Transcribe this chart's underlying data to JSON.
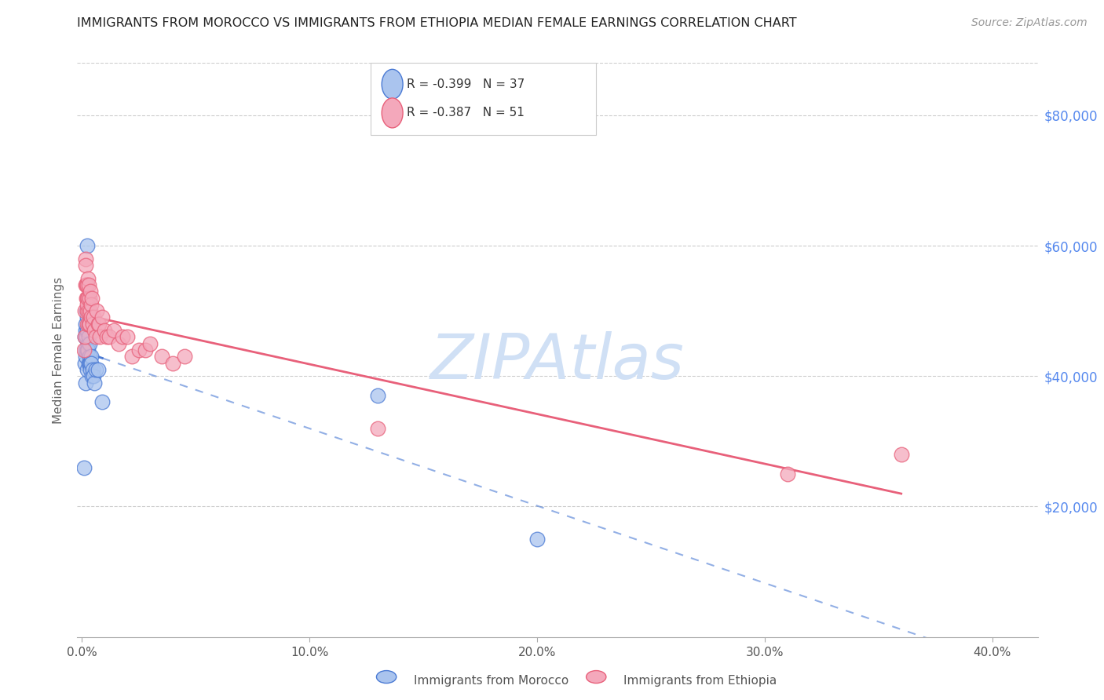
{
  "title": "IMMIGRANTS FROM MOROCCO VS IMMIGRANTS FROM ETHIOPIA MEDIAN FEMALE EARNINGS CORRELATION CHART",
  "source": "Source: ZipAtlas.com",
  "ylabel": "Median Female Earnings",
  "xlabel_ticks": [
    "0.0%",
    "10.0%",
    "20.0%",
    "30.0%",
    "40.0%"
  ],
  "xlabel_vals": [
    0.0,
    0.1,
    0.2,
    0.3,
    0.4
  ],
  "ytick_labels": [
    "$20,000",
    "$40,000",
    "$60,000",
    "$80,000"
  ],
  "ytick_vals": [
    20000,
    40000,
    60000,
    80000
  ],
  "ylim": [
    0,
    88000
  ],
  "xlim": [
    -0.002,
    0.42
  ],
  "morocco_R": -0.399,
  "morocco_N": 37,
  "ethiopia_R": -0.387,
  "ethiopia_N": 51,
  "morocco_color": "#aac4ee",
  "ethiopia_color": "#f4a8bb",
  "morocco_line_color": "#4a7ad4",
  "ethiopia_line_color": "#e8607a",
  "watermark": "ZIPAtlas",
  "watermark_color": "#d0e0f5",
  "morocco_x": [
    0.001,
    0.0012,
    0.0013,
    0.0015,
    0.0015,
    0.0016,
    0.0018,
    0.0018,
    0.002,
    0.002,
    0.0022,
    0.0022,
    0.0023,
    0.0023,
    0.0025,
    0.0025,
    0.0026,
    0.0028,
    0.003,
    0.003,
    0.0032,
    0.0033,
    0.0034,
    0.0035,
    0.0036,
    0.0038,
    0.004,
    0.0042,
    0.0045,
    0.0048,
    0.005,
    0.0055,
    0.006,
    0.007,
    0.009,
    0.13,
    0.2
  ],
  "morocco_y": [
    26000,
    46000,
    42000,
    47000,
    43000,
    48000,
    44000,
    39000,
    50000,
    46000,
    44000,
    41000,
    60000,
    47000,
    44000,
    49000,
    45000,
    44000,
    42000,
    48000,
    46000,
    43000,
    42000,
    45000,
    42000,
    41000,
    43000,
    42000,
    40000,
    41000,
    40000,
    39000,
    41000,
    41000,
    36000,
    37000,
    15000
  ],
  "ethiopia_x": [
    0.001,
    0.0012,
    0.0013,
    0.0015,
    0.0016,
    0.0018,
    0.002,
    0.002,
    0.0022,
    0.0022,
    0.0023,
    0.0025,
    0.0025,
    0.0027,
    0.0028,
    0.003,
    0.003,
    0.0032,
    0.0034,
    0.0035,
    0.0036,
    0.0038,
    0.004,
    0.0042,
    0.0045,
    0.0048,
    0.005,
    0.0055,
    0.006,
    0.0065,
    0.007,
    0.0075,
    0.008,
    0.009,
    0.01,
    0.011,
    0.012,
    0.014,
    0.016,
    0.018,
    0.02,
    0.022,
    0.025,
    0.028,
    0.03,
    0.035,
    0.04,
    0.045,
    0.13,
    0.31,
    0.36
  ],
  "ethiopia_y": [
    44000,
    50000,
    46000,
    58000,
    54000,
    57000,
    54000,
    52000,
    50000,
    52000,
    48000,
    54000,
    51000,
    55000,
    52000,
    50000,
    48000,
    54000,
    52000,
    48000,
    50000,
    53000,
    51000,
    49000,
    52000,
    48000,
    49000,
    47000,
    46000,
    50000,
    48000,
    48000,
    46000,
    49000,
    47000,
    46000,
    46000,
    47000,
    45000,
    46000,
    46000,
    43000,
    44000,
    44000,
    45000,
    43000,
    42000,
    43000,
    32000,
    25000,
    28000
  ],
  "morocco_line_start_x": 0.001,
  "morocco_line_end_x": 0.009,
  "morocco_line_dash_start": 0.009,
  "morocco_line_dash_end": 0.42,
  "ethiopia_line_start_x": 0.001,
  "ethiopia_line_end_x": 0.36
}
